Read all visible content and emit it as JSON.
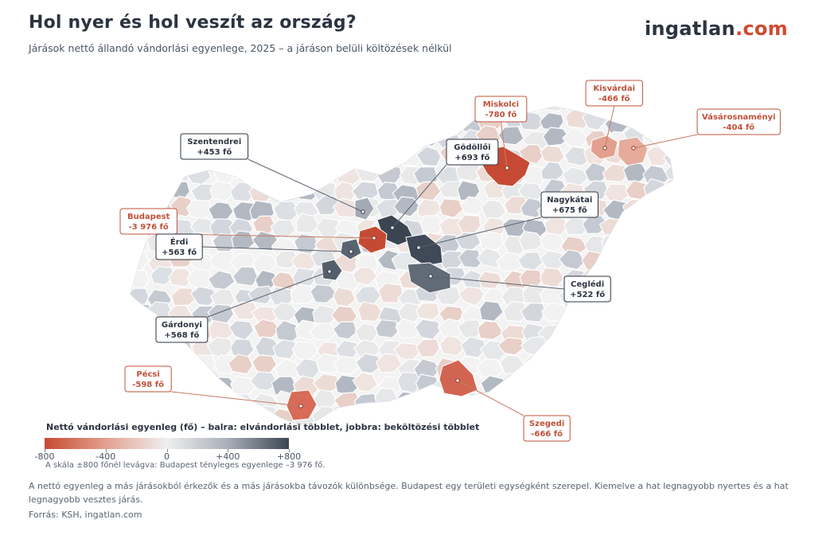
{
  "header": {
    "title": "Hol nyer és hol veszít az ország?",
    "subtitle": "Járások nettó állandó vándorlási egyenlege, 2025 – a járáson belüli költözések nélkül",
    "logo_main": "ingatlan",
    "logo_suffix": ".com"
  },
  "colors": {
    "loss": "#c64a33",
    "gain": "#3b4552",
    "neutral": "#efefef",
    "loss_label": "#c0513a",
    "gain_label": "#2b3440"
  },
  "legend": {
    "title": "Nettó vándorlási egyenleg (fő)  –  balra: elvándorlási többlet, jobbra: beköltözési többlet",
    "ticks": [
      "-800",
      "-400",
      "0",
      "+400",
      "+800"
    ],
    "tick_values": [
      -800,
      -400,
      0,
      400,
      800
    ],
    "range": [
      -800,
      800
    ],
    "note": "A skála ±800 főnél levágva: Budapest tényleges egyenlege –3 976 fő."
  },
  "callouts": [
    {
      "name": "Miskolci",
      "value": "-780 fő",
      "net": -780,
      "type": "loss"
    },
    {
      "name": "Kisvárdai",
      "value": "-466 fő",
      "net": -466,
      "type": "loss"
    },
    {
      "name": "Vásárosnaményi",
      "value": "-404 fő",
      "net": -404,
      "type": "loss"
    },
    {
      "name": "Szentendrei",
      "value": "+453 fő",
      "net": 453,
      "type": "gain"
    },
    {
      "name": "Gödöllői",
      "value": "+693 fő",
      "net": 693,
      "type": "gain"
    },
    {
      "name": "Nagykátai",
      "value": "+675 fő",
      "net": 675,
      "type": "gain"
    },
    {
      "name": "Budapest",
      "value": "-3 976 fő",
      "net": -3976,
      "type": "loss"
    },
    {
      "name": "Érdi",
      "value": "+563 fő",
      "net": 563,
      "type": "gain"
    },
    {
      "name": "Ceglédi",
      "value": "+522 fő",
      "net": 522,
      "type": "gain"
    },
    {
      "name": "Gárdonyi",
      "value": "+568 fő",
      "net": 568,
      "type": "gain"
    },
    {
      "name": "Pécsi",
      "value": "-598 fő",
      "net": -598,
      "type": "loss"
    },
    {
      "name": "Szegedi",
      "value": "-666 fő",
      "net": -666,
      "type": "loss"
    }
  ],
  "footnote": "A nettó egyenleg a más járásokból érkezők és a más járásokba távozók különbsége. Budapest egy területi egységként szerepel. Kiemelve a hat legnagyobb nyertes és a hat legnagyobb vesztes járás.",
  "source": "Forrás: KSH, ingatlan.com"
}
